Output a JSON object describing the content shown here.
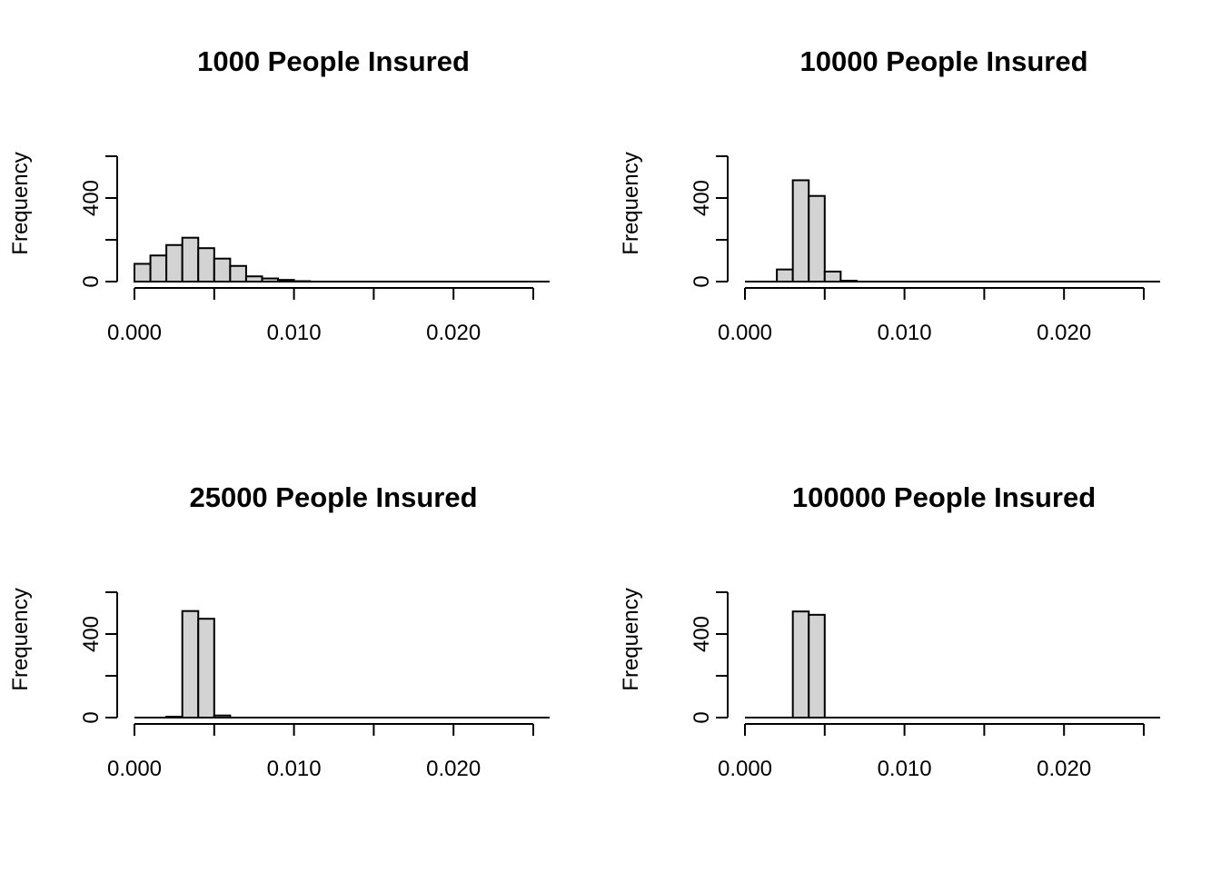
{
  "chart_data": [
    {
      "type": "bar",
      "title": "1000 People Insured",
      "ylabel": "Frequency",
      "xlabel": "",
      "bin_width": 0.001,
      "xlim": [
        0,
        0.025
      ],
      "ylim": [
        0,
        600
      ],
      "x_ticks": [
        0.0,
        0.005,
        0.01,
        0.015,
        0.02,
        0.025
      ],
      "x_tick_labels": [
        "0.000",
        "",
        "0.010",
        "",
        "0.020",
        ""
      ],
      "y_ticks": [
        0,
        200,
        400,
        600
      ],
      "y_tick_labels": [
        "0",
        "",
        "400",
        ""
      ],
      "bins": [
        {
          "start": 0.0,
          "count": 85
        },
        {
          "start": 0.001,
          "count": 125
        },
        {
          "start": 0.002,
          "count": 175
        },
        {
          "start": 0.003,
          "count": 210
        },
        {
          "start": 0.004,
          "count": 160
        },
        {
          "start": 0.005,
          "count": 110
        },
        {
          "start": 0.006,
          "count": 75
        },
        {
          "start": 0.007,
          "count": 25
        },
        {
          "start": 0.008,
          "count": 15
        },
        {
          "start": 0.009,
          "count": 8
        },
        {
          "start": 0.01,
          "count": 2
        }
      ]
    },
    {
      "type": "bar",
      "title": "10000 People Insured",
      "ylabel": "Frequency",
      "xlabel": "",
      "bin_width": 0.001,
      "xlim": [
        0,
        0.025
      ],
      "ylim": [
        0,
        600
      ],
      "x_ticks": [
        0.0,
        0.005,
        0.01,
        0.015,
        0.02,
        0.025
      ],
      "x_tick_labels": [
        "0.000",
        "",
        "0.010",
        "",
        "0.020",
        ""
      ],
      "y_ticks": [
        0,
        200,
        400,
        600
      ],
      "y_tick_labels": [
        "0",
        "",
        "400",
        ""
      ],
      "bins": [
        {
          "start": 0.002,
          "count": 58
        },
        {
          "start": 0.003,
          "count": 485
        },
        {
          "start": 0.004,
          "count": 410
        },
        {
          "start": 0.005,
          "count": 48
        },
        {
          "start": 0.006,
          "count": 4
        }
      ]
    },
    {
      "type": "bar",
      "title": "25000 People Insured",
      "ylabel": "Frequency",
      "xlabel": "",
      "bin_width": 0.001,
      "xlim": [
        0,
        0.025
      ],
      "ylim": [
        0,
        600
      ],
      "x_ticks": [
        0.0,
        0.005,
        0.01,
        0.015,
        0.02,
        0.025
      ],
      "x_tick_labels": [
        "0.000",
        "",
        "0.010",
        "",
        "0.020",
        ""
      ],
      "y_ticks": [
        0,
        200,
        400,
        600
      ],
      "y_tick_labels": [
        "0",
        "",
        "400",
        ""
      ],
      "bins": [
        {
          "start": 0.002,
          "count": 4
        },
        {
          "start": 0.003,
          "count": 510
        },
        {
          "start": 0.004,
          "count": 473
        },
        {
          "start": 0.005,
          "count": 10
        }
      ]
    },
    {
      "type": "bar",
      "title": "100000 People Insured",
      "ylabel": "Frequency",
      "xlabel": "",
      "bin_width": 0.001,
      "xlim": [
        0,
        0.025
      ],
      "ylim": [
        0,
        600
      ],
      "x_ticks": [
        0.0,
        0.005,
        0.01,
        0.015,
        0.02,
        0.025
      ],
      "x_tick_labels": [
        "0.000",
        "",
        "0.010",
        "",
        "0.020",
        ""
      ],
      "y_ticks": [
        0,
        200,
        400,
        600
      ],
      "y_tick_labels": [
        "0",
        "",
        "400",
        ""
      ],
      "bins": [
        {
          "start": 0.003,
          "count": 508
        },
        {
          "start": 0.004,
          "count": 492
        }
      ]
    }
  ]
}
